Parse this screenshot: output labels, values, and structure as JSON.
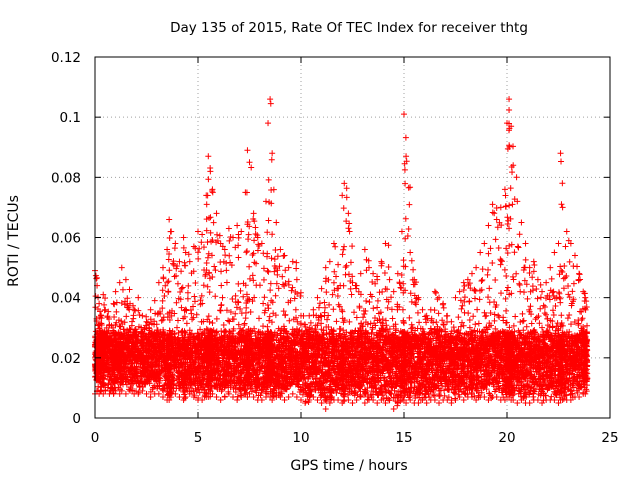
{
  "chart_data": {
    "type": "scatter",
    "title": "Day 135 of 2015, Rate Of TEC Index for receiver thtg",
    "xlabel": "GPS time / hours",
    "ylabel": "ROTI / TECUs",
    "xlim": [
      0,
      25
    ],
    "ylim": [
      0,
      0.12
    ],
    "x_ticks": [
      0,
      5,
      10,
      15,
      20,
      25
    ],
    "y_ticks": [
      0,
      0.02,
      0.04,
      0.06,
      0.08,
      0.1,
      0.12
    ],
    "x_tick_labels": [
      "0",
      "5",
      "10",
      "15",
      "20",
      "25"
    ],
    "y_tick_labels": [
      "0",
      "0.02",
      "0.04",
      "0.06",
      "0.08",
      "0.1",
      "0.12"
    ],
    "grid": true,
    "marker": "+",
    "color": "#ff0000",
    "series": [
      {
        "name": "ROTI",
        "x": [
          0.0,
          0.1,
          0.2,
          0.3,
          0.4,
          0.5,
          0.7,
          0.9,
          1.0,
          1.2,
          1.3,
          1.5,
          1.7,
          1.9,
          2.1,
          2.3,
          2.5,
          2.7,
          2.9,
          3.1,
          3.3,
          3.5,
          3.6,
          3.7,
          3.9,
          4.1,
          4.3,
          4.4,
          4.6,
          4.8,
          5.0,
          5.2,
          5.4,
          5.5,
          5.6,
          5.7,
          5.9,
          6.1,
          6.3,
          6.5,
          6.7,
          6.9,
          7.1,
          7.3,
          7.4,
          7.5,
          7.7,
          7.9,
          8.1,
          8.3,
          8.4,
          8.5,
          8.6,
          8.8,
          9.0,
          9.2,
          9.4,
          9.6,
          9.8,
          10.0,
          10.2,
          10.4,
          10.6,
          10.8,
          11.0,
          11.2,
          11.4,
          11.6,
          11.8,
          12.0,
          12.1,
          12.3,
          12.5,
          12.7,
          12.9,
          13.1,
          13.3,
          13.5,
          13.7,
          13.9,
          14.1,
          14.3,
          14.5,
          14.7,
          14.9,
          15.0,
          15.1,
          15.3,
          15.5,
          15.7,
          15.9,
          16.1,
          16.3,
          16.5,
          16.7,
          16.9,
          17.1,
          17.3,
          17.5,
          17.7,
          17.9,
          18.1,
          18.3,
          18.5,
          18.7,
          18.9,
          19.1,
          19.3,
          19.5,
          19.7,
          19.9,
          20.0,
          20.1,
          20.2,
          20.3,
          20.5,
          20.7,
          20.9,
          21.1,
          21.3,
          21.5,
          21.7,
          21.9,
          22.1,
          22.3,
          22.5,
          22.6,
          22.7,
          22.9,
          23.1,
          23.3,
          23.5,
          23.7,
          23.8
        ],
        "y": [
          0.049,
          0.044,
          0.038,
          0.034,
          0.041,
          0.036,
          0.031,
          0.038,
          0.042,
          0.045,
          0.05,
          0.046,
          0.038,
          0.036,
          0.04,
          0.034,
          0.032,
          0.036,
          0.039,
          0.045,
          0.05,
          0.056,
          0.066,
          0.062,
          0.058,
          0.052,
          0.06,
          0.055,
          0.052,
          0.057,
          0.062,
          0.061,
          0.074,
          0.087,
          0.082,
          0.076,
          0.068,
          0.058,
          0.056,
          0.063,
          0.06,
          0.064,
          0.062,
          0.075,
          0.089,
          0.085,
          0.068,
          0.06,
          0.058,
          0.072,
          0.098,
          0.106,
          0.088,
          0.065,
          0.056,
          0.054,
          0.05,
          0.052,
          0.046,
          0.034,
          0.031,
          0.034,
          0.036,
          0.04,
          0.043,
          0.05,
          0.052,
          0.058,
          0.051,
          0.074,
          0.078,
          0.068,
          0.045,
          0.044,
          0.048,
          0.056,
          0.05,
          0.048,
          0.046,
          0.052,
          0.058,
          0.046,
          0.042,
          0.048,
          0.062,
          0.101,
          0.087,
          0.055,
          0.046,
          0.04,
          0.036,
          0.034,
          0.036,
          0.042,
          0.04,
          0.038,
          0.034,
          0.032,
          0.04,
          0.042,
          0.045,
          0.046,
          0.048,
          0.05,
          0.055,
          0.058,
          0.064,
          0.071,
          0.066,
          0.07,
          0.076,
          0.098,
          0.106,
          0.097,
          0.084,
          0.072,
          0.065,
          0.058,
          0.05,
          0.052,
          0.046,
          0.042,
          0.045,
          0.05,
          0.055,
          0.058,
          0.088,
          0.07,
          0.062,
          0.058,
          0.054,
          0.048,
          0.042,
          0.04
        ],
        "baseline_min": [
          0.008,
          0.009,
          0.008,
          0.009,
          0.008,
          0.009,
          0.008,
          0.008,
          0.009,
          0.008,
          0.009,
          0.008,
          0.009,
          0.008,
          0.008,
          0.009,
          0.008,
          0.007,
          0.008,
          0.008,
          0.007,
          0.006,
          0.006,
          0.008,
          0.008,
          0.007,
          0.006,
          0.007,
          0.008,
          0.007,
          0.006,
          0.006,
          0.007,
          0.007,
          0.008,
          0.008,
          0.007,
          0.006,
          0.007,
          0.008,
          0.007,
          0.006,
          0.007,
          0.008,
          0.007,
          0.008,
          0.007,
          0.006,
          0.006,
          0.007,
          0.008,
          0.007,
          0.006,
          0.007,
          0.007,
          0.006,
          0.007,
          0.008,
          0.007,
          0.006,
          0.005,
          0.006,
          0.007,
          0.006,
          0.005,
          0.003,
          0.005,
          0.006,
          0.006,
          0.005,
          0.006,
          0.006,
          0.005,
          0.006,
          0.007,
          0.005,
          0.006,
          0.006,
          0.005,
          0.006,
          0.005,
          0.006,
          0.003,
          0.005,
          0.006,
          0.006,
          0.005,
          0.006,
          0.005,
          0.005,
          0.006,
          0.005,
          0.006,
          0.006,
          0.005,
          0.006,
          0.006,
          0.005,
          0.006,
          0.007,
          0.006,
          0.007,
          0.007,
          0.006,
          0.007,
          0.007,
          0.006,
          0.007,
          0.007,
          0.006,
          0.006,
          0.007,
          0.007,
          0.006,
          0.006,
          0.005,
          0.006,
          0.005,
          0.005,
          0.006,
          0.006,
          0.005,
          0.006,
          0.006,
          0.006,
          0.005,
          0.006,
          0.006,
          0.006,
          0.006,
          0.007,
          0.007,
          0.008,
          0.008
        ]
      }
    ]
  }
}
